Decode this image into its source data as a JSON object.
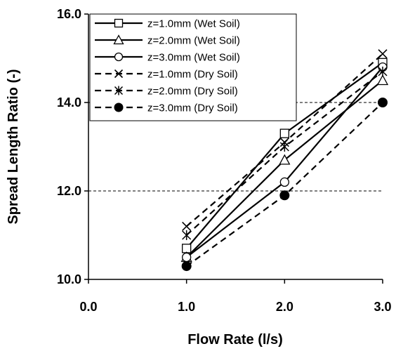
{
  "chart_data": {
    "type": "line",
    "title": "",
    "xlabel": "Flow Rate (l/s)",
    "ylabel": "Spread Length Ratio (-)",
    "xlim": [
      0,
      3
    ],
    "ylim": [
      10,
      16
    ],
    "x_ticks": [
      "0.0",
      "1.0",
      "2.0",
      "3.0"
    ],
    "y_ticks": [
      "10.0",
      "12.0",
      "14.0",
      "16.0"
    ],
    "gridlines_y": [
      12,
      14
    ],
    "grid": "horizontal dashed",
    "legend_position": "top-left",
    "colors": {
      "line": "#000000",
      "grid": "#000000",
      "background": "#ffffff"
    },
    "series": [
      {
        "name": "z=1.0mm (Wet Soil)",
        "linestyle": "solid",
        "marker": "square",
        "x": [
          1,
          2,
          3
        ],
        "y": [
          10.7,
          13.3,
          14.9
        ]
      },
      {
        "name": "z=2.0mm (Wet Soil)",
        "linestyle": "solid",
        "marker": "triangle",
        "x": [
          1,
          2,
          3
        ],
        "y": [
          10.5,
          12.7,
          14.5
        ]
      },
      {
        "name": "z=3.0mm (Wet Soil)",
        "linestyle": "solid",
        "marker": "circle",
        "x": [
          1,
          2,
          3
        ],
        "y": [
          10.5,
          12.2,
          14.8
        ]
      },
      {
        "name": "z=1.0mm (Dry Soil)",
        "linestyle": "dashed",
        "marker": "x",
        "x": [
          1,
          2,
          3
        ],
        "y": [
          11.2,
          13.1,
          15.1
        ]
      },
      {
        "name": "z=2.0mm (Dry Soil)",
        "linestyle": "dashed",
        "marker": "asterisk",
        "x": [
          1,
          2,
          3
        ],
        "y": [
          11.0,
          13.0,
          14.7
        ]
      },
      {
        "name": "z=3.0mm (Dry Soil)",
        "linestyle": "dashed",
        "marker": "filled-circle",
        "x": [
          1,
          2,
          3
        ],
        "y": [
          10.3,
          11.9,
          14.0
        ]
      }
    ]
  }
}
